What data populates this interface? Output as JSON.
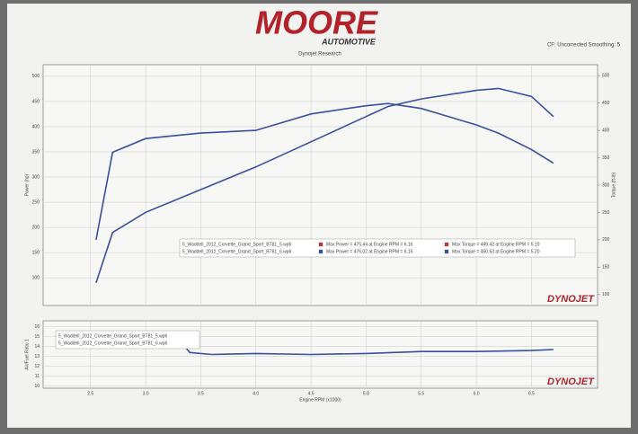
{
  "header": {
    "logo": "MOORE",
    "logo_sub": "AUTOMOTIVE",
    "subtitle": "Dynojet Research",
    "note": "CF: Uncorrected Smoothing: 5",
    "brand": "DYNOJET"
  },
  "chart_data": [
    {
      "type": "line",
      "y_label": "Power (hp)",
      "y2_label": "Torque (ft-lb)",
      "x": [
        2.55,
        2.7,
        3.0,
        3.5,
        4.0,
        4.5,
        5.0,
        5.2,
        5.5,
        6.0,
        6.2,
        6.5,
        6.7
      ],
      "xlim": [
        2.07,
        7.1
      ],
      "xticks": [
        2.5,
        3,
        3.5,
        4,
        4.5,
        5,
        5.5,
        6,
        6.5
      ],
      "ylim": [
        45,
        523
      ],
      "yticks": [
        100,
        150,
        200,
        250,
        300,
        350,
        400,
        450,
        500
      ],
      "y2lim": [
        80,
        520
      ],
      "y2ticks": [
        100,
        150,
        200,
        250,
        300,
        350,
        400,
        450,
        500
      ],
      "grid": true,
      "series": [
        {
          "color": "#3a4fa0",
          "values": [
            90,
            190,
            230,
            275,
            320,
            370,
            420,
            440,
            455,
            472,
            476,
            460,
            420
          ]
        },
        {
          "color": "#3a4fa0",
          "axis": "y2",
          "values": [
            200,
            360,
            385,
            395,
            400,
            430,
            445,
            449,
            440,
            410,
            395,
            365,
            340
          ]
        }
      ],
      "legend": [
        [
          "5_Waddell_2012_Corvette_Grand_Sport_BT81_5.wp6",
          "Max Power = 475.44 at Engine RPM = 6.16",
          "Max Torque = 449.42 at Engine RPM = 5.19"
        ],
        [
          "5_Waddell_2012_Corvette_Grand_Sport_BT81_6.wp6",
          "Max Power = 476.02 at Engine RPM = 6.15",
          "Max Torque = 450.63 at Engine RPM = 5.20"
        ]
      ]
    },
    {
      "type": "line",
      "y_label": "Air/Fuel Ratio 1",
      "x_label": "Engine RPM (x1000)",
      "x": [
        3.3,
        3.4,
        3.6,
        4.0,
        4.5,
        5.0,
        5.5,
        6.0,
        6.5,
        6.7
      ],
      "xlim": [
        2.07,
        7.1
      ],
      "xticks": [
        2.5,
        {
          "value": 3,
          "label": "3.0"
        },
        3.5,
        {
          "value": 4,
          "label": "4.0"
        },
        4.5,
        {
          "value": 5,
          "label": "5.0"
        },
        5.5,
        {
          "value": 6,
          "label": "6.0"
        },
        6.5
      ],
      "ylim": [
        9.8,
        16.6
      ],
      "yticks": [
        10,
        11,
        12,
        13,
        14,
        15,
        16
      ],
      "grid": true,
      "series": [
        {
          "color": "#3a4fa0",
          "values": [
            14.8,
            13.4,
            13.2,
            13.3,
            13.2,
            13.3,
            13.5,
            13.5,
            13.6,
            13.7
          ]
        }
      ],
      "legend": [
        [
          "5_Waddell_2012_Corvette_Grand_Sport_BT81_5.wp6"
        ],
        [
          "5_Waddell_2012_Corvette_Grand_Sport_BT81_6.wp6"
        ]
      ]
    }
  ]
}
